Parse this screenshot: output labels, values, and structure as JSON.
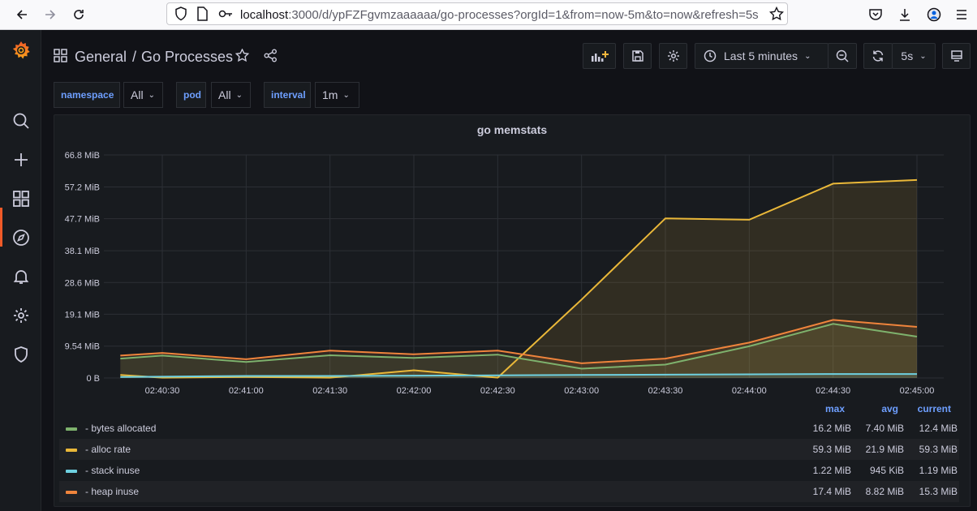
{
  "browser": {
    "url_host": "localhost",
    "url_rest": ":3000/d/ypFZFgvmzaaaaaa/go-processes?orgId=1&from=now-5m&to=now&refresh=5s"
  },
  "header": {
    "folder": "General",
    "separator": "/",
    "title": "Go Processes",
    "time_range": "Last 5 minutes",
    "refresh_interval": "5s"
  },
  "variables": [
    {
      "label": "namespace",
      "value": "All"
    },
    {
      "label": "pod",
      "value": "All"
    },
    {
      "label": "interval",
      "value": "1m"
    }
  ],
  "panel": {
    "title": "go memstats"
  },
  "legend": {
    "headers": {
      "max": "max",
      "avg": "avg",
      "current": "current"
    },
    "items": [
      {
        "name": "- bytes allocated",
        "color": "#7eb26d",
        "max": "16.2 MiB",
        "avg": "7.40 MiB",
        "current": "12.4 MiB"
      },
      {
        "name": "- alloc rate",
        "color": "#eab839",
        "max": "59.3 MiB",
        "avg": "21.9 MiB",
        "current": "59.3 MiB"
      },
      {
        "name": "- stack inuse",
        "color": "#6ed0e0",
        "max": "1.22 MiB",
        "avg": "945 KiB",
        "current": "1.19 MiB"
      },
      {
        "name": "- heap inuse",
        "color": "#ef843c",
        "max": "17.4 MiB",
        "avg": "8.82 MiB",
        "current": "15.3 MiB"
      }
    ]
  },
  "chart_data": {
    "type": "area",
    "title": "go memstats",
    "y_unit": "MiB",
    "ylim": [
      0,
      66.8
    ],
    "y_ticks": [
      "0 B",
      "9.54 MiB",
      "19.1 MiB",
      "28.6 MiB",
      "38.1 MiB",
      "47.7 MiB",
      "57.2 MiB",
      "66.8 MiB"
    ],
    "y_tick_values": [
      0,
      9.54,
      19.1,
      28.6,
      38.1,
      47.7,
      57.2,
      66.8
    ],
    "x_ticks": [
      "02:40:30",
      "02:41:00",
      "02:41:30",
      "02:42:00",
      "02:42:30",
      "02:43:00",
      "02:43:30",
      "02:44:00",
      "02:44:30",
      "02:45:00"
    ],
    "x": [
      "02:40:15",
      "02:40:30",
      "02:41:00",
      "02:41:30",
      "02:42:00",
      "02:42:30",
      "02:43:00",
      "02:43:30",
      "02:44:00",
      "02:44:30",
      "02:45:00"
    ],
    "grid": true,
    "series": [
      {
        "name": "- bytes allocated",
        "color": "#7eb26d",
        "values": [
          5.8,
          6.7,
          4.8,
          6.8,
          6.0,
          7.0,
          2.8,
          4.0,
          9.5,
          16.2,
          12.4
        ]
      },
      {
        "name": "- alloc rate",
        "color": "#eab839",
        "values": [
          0.9,
          0.1,
          0.3,
          0.1,
          2.3,
          0.1,
          23.5,
          47.8,
          47.4,
          58.2,
          59.3
        ]
      },
      {
        "name": "- stack inuse",
        "color": "#6ed0e0",
        "values": [
          0.3,
          0.4,
          0.6,
          0.6,
          0.7,
          0.8,
          0.9,
          1.0,
          1.1,
          1.2,
          1.19
        ]
      },
      {
        "name": "- heap inuse",
        "color": "#ef843c",
        "values": [
          6.7,
          7.5,
          5.6,
          8.2,
          7.1,
          8.2,
          4.4,
          5.8,
          10.6,
          17.4,
          15.3
        ]
      }
    ]
  }
}
